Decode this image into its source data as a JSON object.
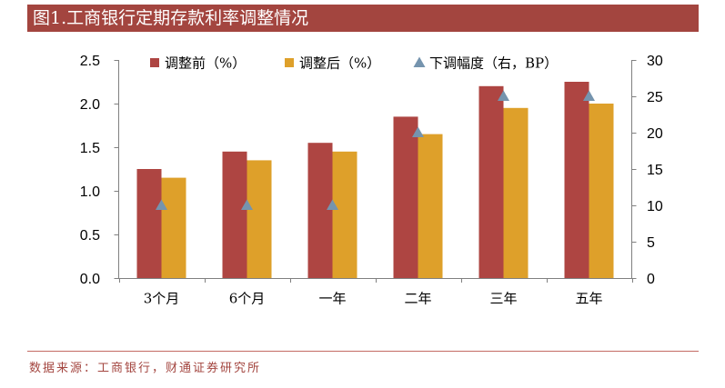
{
  "source": "数据来源：工商银行，财通证券研究所",
  "colors": {
    "header_bar": "#A3453F",
    "header_text": "#FFFFFF",
    "source_text": "#A3453F",
    "source_rule": "#C36A64"
  },
  "chart_data": {
    "type": "bar",
    "title": "图1.工商银行定期存款利率调整情况",
    "categories": [
      "3个月",
      "6个月",
      "一年",
      "二年",
      "三年",
      "五年"
    ],
    "series": [
      {
        "name": "调整前（%）",
        "type": "bar",
        "axis": "left",
        "color": "#AE4542",
        "values": [
          1.25,
          1.45,
          1.55,
          1.85,
          2.2,
          2.25
        ]
      },
      {
        "name": "调整后（%）",
        "type": "bar",
        "axis": "left",
        "color": "#DEA02A",
        "values": [
          1.15,
          1.35,
          1.45,
          1.65,
          1.95,
          2.0
        ]
      },
      {
        "name": "下调幅度（右，BP）",
        "type": "scatter",
        "marker": "triangle",
        "axis": "right",
        "color": "#7594AE",
        "values": [
          10,
          10,
          10,
          20,
          25,
          25
        ]
      }
    ],
    "ylim": [
      0,
      2.5
    ],
    "y_ticks": [
      "0.0",
      "0.5",
      "1.0",
      "1.5",
      "2.0",
      "2.5"
    ],
    "y2lim": [
      0,
      30
    ],
    "y2_ticks": [
      "0",
      "5",
      "10",
      "15",
      "20",
      "25",
      "30"
    ],
    "legend": "top",
    "grid": false
  }
}
